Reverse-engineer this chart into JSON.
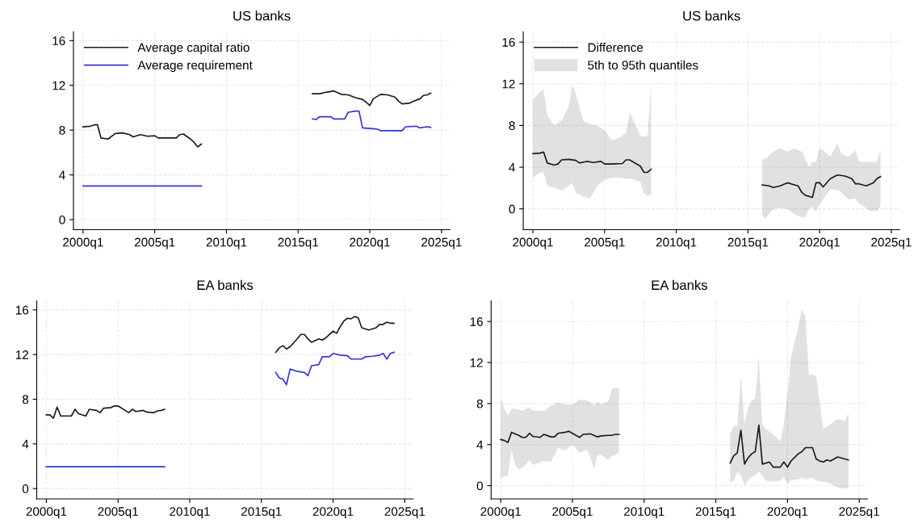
{
  "chart_data": [
    {
      "type": "line",
      "title": "US banks",
      "xlim": [
        "1999-05",
        "2025-08"
      ],
      "ylim": [
        -0.9,
        16.8
      ],
      "xticks": [
        {
          "value": "2000-01",
          "label": "2000q1"
        },
        {
          "value": "2005-01",
          "label": "2005q1"
        },
        {
          "value": "2010-01",
          "label": "2010q1"
        },
        {
          "value": "2015-01",
          "label": "2015q1"
        },
        {
          "value": "2020-01",
          "label": "2020q1"
        },
        {
          "value": "2025-01",
          "label": "2025q1"
        }
      ],
      "yticks": [
        0,
        4,
        8,
        12,
        16
      ],
      "grid": true,
      "legend": "top left",
      "series": [
        {
          "name": "Average capital ratio",
          "color": "#1a1a1a",
          "x": [
            "2000-01",
            "2000-07",
            "2000-10",
            "2001-01",
            "2001-04",
            "2001-10",
            "2002-04",
            "2002-10",
            "2003-04",
            "2003-07",
            "2004-01",
            "2004-07",
            "2005-01",
            "2005-04",
            "2006-01",
            "2006-07",
            "2006-10",
            "2007-01",
            "2007-07",
            "2007-10",
            "2008-01",
            "2008-04",
            "2012-01",
            "2016-01",
            "2016-07",
            "2017-01",
            "2017-07",
            "2018-01",
            "2018-07",
            "2019-01",
            "2019-07",
            "2019-10",
            "2020-01",
            "2020-04",
            "2020-10",
            "2021-04",
            "2021-10",
            "2022-01",
            "2022-04",
            "2022-10",
            "2023-01",
            "2023-07",
            "2023-10",
            "2024-01",
            "2024-04"
          ],
          "values": [
            8.3,
            8.35,
            8.45,
            8.5,
            7.3,
            7.2,
            7.7,
            7.75,
            7.6,
            7.4,
            7.6,
            7.45,
            7.5,
            7.3,
            7.3,
            7.3,
            7.6,
            7.65,
            7.2,
            6.9,
            6.5,
            6.75,
            null,
            11.25,
            11.25,
            11.4,
            11.5,
            11.2,
            11.15,
            10.9,
            10.75,
            10.5,
            10.2,
            10.8,
            11.2,
            11.15,
            10.95,
            10.6,
            10.35,
            10.4,
            10.55,
            10.8,
            11.1,
            11.15,
            11.3
          ]
        },
        {
          "name": "Average requirement",
          "color": "#3434d8",
          "x": [
            "2000-01",
            "2008-04",
            "2012-01",
            "2016-01",
            "2016-04",
            "2016-07",
            "2017-04",
            "2017-07",
            "2018-04",
            "2018-07",
            "2019-01",
            "2019-04",
            "2019-07",
            "2020-01",
            "2020-07",
            "2020-10",
            "2022-04",
            "2022-07",
            "2023-04",
            "2023-07",
            "2024-01",
            "2024-04"
          ],
          "values": [
            3.0,
            3.0,
            null,
            9.0,
            8.95,
            9.2,
            9.2,
            9.0,
            9.0,
            9.6,
            9.7,
            9.7,
            8.2,
            8.15,
            8.1,
            7.95,
            7.95,
            8.3,
            8.35,
            8.2,
            8.3,
            8.25
          ]
        }
      ]
    },
    {
      "type": "line",
      "title": "US banks",
      "xlim": [
        "1999-05",
        "2025-08"
      ],
      "ylim": [
        -2.0,
        17.0
      ],
      "xticks": [
        {
          "value": "2000-01",
          "label": "2000q1"
        },
        {
          "value": "2005-01",
          "label": "2005q1"
        },
        {
          "value": "2010-01",
          "label": "2010q1"
        },
        {
          "value": "2015-01",
          "label": "2015q1"
        },
        {
          "value": "2020-01",
          "label": "2020q1"
        },
        {
          "value": "2025-01",
          "label": "2025q1"
        }
      ],
      "yticks": [
        0,
        4,
        8,
        12,
        16
      ],
      "grid": true,
      "legend": "top left",
      "annotations": [
        "5th to 95th quantiles"
      ],
      "series": [
        {
          "name": "Difference",
          "color": "#1a1a1a",
          "x": [
            "2000-01",
            "2000-07",
            "2000-10",
            "2001-01",
            "2001-07",
            "2001-10",
            "2002-01",
            "2002-07",
            "2002-10",
            "2003-01",
            "2003-04",
            "2003-07",
            "2003-10",
            "2004-01",
            "2004-04",
            "2004-07",
            "2004-10",
            "2005-01",
            "2005-07",
            "2006-01",
            "2006-04",
            "2006-07",
            "2006-10",
            "2007-01",
            "2007-04",
            "2007-07",
            "2007-10",
            "2008-01",
            "2008-04",
            "2012-01",
            "2016-01",
            "2016-04",
            "2016-07",
            "2016-10",
            "2017-04",
            "2017-10",
            "2018-04",
            "2018-07",
            "2018-10",
            "2019-01",
            "2019-04",
            "2019-07",
            "2019-10",
            "2020-01",
            "2020-04",
            "2020-10",
            "2021-04",
            "2021-07",
            "2021-10",
            "2022-01",
            "2022-04",
            "2022-07",
            "2022-10",
            "2023-01",
            "2023-04",
            "2023-07",
            "2023-10",
            "2024-01",
            "2024-04"
          ],
          "values": [
            5.3,
            5.35,
            5.45,
            4.4,
            4.2,
            4.3,
            4.7,
            4.75,
            null,
            4.65,
            4.4,
            null,
            4.55,
            null,
            4.45,
            null,
            4.55,
            4.3,
            4.3,
            null,
            4.35,
            4.7,
            4.7,
            null,
            4.3,
            4.1,
            3.5,
            3.5,
            3.8,
            null,
            2.3,
            null,
            2.2,
            2.05,
            2.2,
            2.5,
            2.3,
            2.2,
            1.6,
            1.3,
            null,
            1.1,
            2.5,
            2.5,
            2.1,
            2.9,
            3.25,
            null,
            3.15,
            null,
            2.9,
            2.4,
            2.4,
            null,
            2.2,
            null,
            2.5,
            2.9,
            3.1
          ],
          "upper": [
            10.5,
            11.2,
            11.5,
            9.0,
            8.0,
            null,
            8.5,
            9.8,
            11.9,
            11.0,
            null,
            8.5,
            null,
            8.1,
            null,
            8.0,
            null,
            7.5,
            6.6,
            6.8,
            null,
            7.3,
            9.3,
            8.5,
            null,
            7.0,
            6.9,
            7.0,
            12.0,
            null,
            4.8,
            4.8,
            null,
            5.5,
            5.8,
            5.5,
            5.8,
            null,
            5.5,
            4.8,
            4.0,
            4.5,
            4.5,
            5.8,
            5.6,
            5.0,
            6.3,
            5.3,
            null,
            5.0,
            null,
            5.6,
            4.5,
            4.5,
            null,
            4.5,
            null,
            4.5,
            5.7
          ],
          "lower": [
            3.0,
            3.5,
            3.5,
            2.2,
            2.0,
            null,
            1.8,
            2.2,
            2.5,
            1.5,
            null,
            1.2,
            null,
            1.0,
            null,
            2.2,
            null,
            2.8,
            3.0,
            3.0,
            null,
            2.9,
            2.9,
            2.8,
            null,
            2.6,
            1.5,
            1.2,
            1.4,
            null,
            -0.7,
            -0.9,
            null,
            0.0,
            0.1,
            0.0,
            -0.5,
            null,
            -0.8,
            -0.8,
            0.0,
            0.2,
            -0.3,
            0.5,
            0.9,
            1.9,
            1.8,
            1.6,
            null,
            0.9,
            null,
            1.0,
            0.5,
            0.3,
            null,
            -0.2,
            null,
            -0.2,
            0.3
          ]
        }
      ]
    },
    {
      "type": "line",
      "title": "EA banks",
      "xlim": [
        "1999-05",
        "2025-08"
      ],
      "ylim": [
        -0.93,
        16.8
      ],
      "xticks": [
        {
          "value": "2000-01",
          "label": "2000q1"
        },
        {
          "value": "2005-01",
          "label": "2005q1"
        },
        {
          "value": "2010-01",
          "label": "2010q1"
        },
        {
          "value": "2015-01",
          "label": "2015q1"
        },
        {
          "value": "2020-01",
          "label": "2020q1"
        },
        {
          "value": "2025-01",
          "label": "2025q1"
        }
      ],
      "yticks": [
        0,
        4,
        8,
        12,
        16
      ],
      "grid": true,
      "series": [
        {
          "color": "#1a1a1a",
          "x": [
            "2000-01",
            "2000-04",
            "2000-07",
            "2000-10",
            "2001-01",
            "2001-10",
            "2002-01",
            "2002-04",
            "2002-10",
            "2003-01",
            "2003-07",
            "2003-10",
            "2004-01",
            "2004-07",
            "2004-10",
            "2005-01",
            "2005-07",
            "2005-10",
            "2006-01",
            "2006-04",
            "2006-10",
            "2007-01",
            "2007-07",
            "2007-10",
            "2008-01",
            "2008-04",
            "2012-01",
            "2016-01",
            "2016-04",
            "2016-07",
            "2016-10",
            "2017-01",
            "2017-07",
            "2017-10",
            "2018-01",
            "2018-04",
            "2018-07",
            "2019-01",
            "2019-04",
            "2019-07",
            "2020-01",
            "2020-04",
            "2020-07",
            "2020-10",
            "2021-01",
            "2021-04",
            "2021-07",
            "2021-10",
            "2022-01",
            "2022-07",
            "2023-01",
            "2023-04",
            "2023-07",
            "2023-10",
            "2024-01",
            "2024-04"
          ],
          "values": [
            6.6,
            6.6,
            6.3,
            7.3,
            6.5,
            6.5,
            7.1,
            6.7,
            6.5,
            7.1,
            7.0,
            6.8,
            7.2,
            7.25,
            7.4,
            7.4,
            7.0,
            6.8,
            7.1,
            6.9,
            7.0,
            6.85,
            6.8,
            6.95,
            7.0,
            7.1,
            null,
            12.2,
            12.6,
            12.8,
            12.5,
            12.7,
            13.4,
            13.8,
            13.8,
            13.4,
            13.1,
            13.4,
            13.3,
            13.5,
            14.1,
            13.9,
            14.5,
            15.0,
            15.25,
            15.2,
            15.4,
            15.3,
            14.4,
            14.2,
            14.4,
            14.7,
            14.7,
            14.9,
            14.8,
            14.8
          ]
        },
        {
          "color": "#3434d8",
          "x": [
            "2000-01",
            "2008-04",
            "2012-01",
            "2016-01",
            "2016-04",
            "2016-07",
            "2016-10",
            "2017-01",
            "2017-07",
            "2018-01",
            "2018-04",
            "2018-07",
            "2019-01",
            "2019-04",
            "2019-10",
            "2020-01",
            "2020-07",
            "2021-01",
            "2021-04",
            "2022-01",
            "2022-04",
            "2022-10",
            "2023-04",
            "2023-07",
            "2023-10",
            "2024-01",
            "2024-04"
          ],
          "values": [
            1.95,
            1.95,
            null,
            10.4,
            9.9,
            9.8,
            9.3,
            10.7,
            10.5,
            10.4,
            10.1,
            11.0,
            11.1,
            11.8,
            11.8,
            12.1,
            11.95,
            11.9,
            11.6,
            11.6,
            11.8,
            11.85,
            11.95,
            12.1,
            11.6,
            12.1,
            12.2
          ]
        }
      ]
    },
    {
      "type": "line",
      "title": "EA banks",
      "xlim": [
        "1999-05",
        "2025-08"
      ],
      "ylim": [
        -1.3,
        18.0
      ],
      "xticks": [
        {
          "value": "2000-01",
          "label": "2000q1"
        },
        {
          "value": "2005-01",
          "label": "2005q1"
        },
        {
          "value": "2010-01",
          "label": "2010q1"
        },
        {
          "value": "2015-01",
          "label": "2015q1"
        },
        {
          "value": "2020-01",
          "label": "2020q1"
        },
        {
          "value": "2025-01",
          "label": "2025q1"
        }
      ],
      "yticks": [
        0,
        4,
        8,
        12,
        16
      ],
      "grid": true,
      "series": [
        {
          "color": "#1a1a1a",
          "x": [
            "2000-01",
            "2000-04",
            "2000-07",
            "2000-10",
            "2001-01",
            "2001-04",
            "2001-07",
            "2001-10",
            "2002-01",
            "2002-04",
            "2002-10",
            "2003-01",
            "2003-07",
            "2003-10",
            "2004-01",
            "2004-07",
            "2004-10",
            "2005-01",
            "2005-07",
            "2005-10",
            "2006-01",
            "2006-04",
            "2006-07",
            "2006-10",
            "2007-01",
            "2007-07",
            "2007-10",
            "2008-01",
            "2008-04",
            "2012-01",
            "2016-01",
            "2016-04",
            "2016-07",
            "2016-10",
            "2017-01",
            "2017-04",
            "2017-07",
            "2017-10",
            "2018-01",
            "2018-04",
            "2018-07",
            "2018-10",
            "2019-01",
            "2019-07",
            "2019-10",
            "2020-01",
            "2020-04",
            "2020-07",
            "2020-10",
            "2021-01",
            "2021-04",
            "2021-07",
            "2021-10",
            "2022-01",
            "2022-04",
            "2022-07",
            "2022-10",
            "2023-01",
            "2023-07",
            "2024-01",
            "2024-04"
          ],
          "values": [
            4.5,
            4.4,
            4.2,
            5.2,
            null,
            4.9,
            4.7,
            4.7,
            5.1,
            4.8,
            4.7,
            5.0,
            4.75,
            4.75,
            5.1,
            5.2,
            5.3,
            5.1,
            4.7,
            5.0,
            null,
            5.05,
            null,
            4.75,
            4.85,
            4.9,
            4.9,
            5.0,
            5.0,
            null,
            2.2,
            2.9,
            3.2,
            5.4,
            2.1,
            2.7,
            3.1,
            3.3,
            5.9,
            2.1,
            null,
            2.3,
            1.8,
            1.8,
            2.3,
            1.8,
            2.4,
            null,
            3.1,
            3.3,
            3.7,
            null,
            3.7,
            2.6,
            2.4,
            2.3,
            2.5,
            2.4,
            2.8,
            2.6,
            2.5
          ],
          "upper": [
            8.5,
            7.5,
            6.8,
            7.5,
            7.5,
            7.4,
            7.3,
            null,
            7.6,
            7.3,
            null,
            7.3,
            7.8,
            null,
            8.1,
            7.9,
            null,
            7.9,
            8.4,
            null,
            8.3,
            8.1,
            7.8,
            8.2,
            7.9,
            8.2,
            9.4,
            9.5,
            9.5,
            null,
            5.0,
            5.8,
            5.8,
            10.7,
            6.0,
            7.5,
            8.3,
            8.5,
            12.5,
            6.0,
            5.5,
            null,
            5.0,
            4.3,
            6.0,
            9.0,
            12.5,
            14.0,
            15.5,
            17.2,
            16.5,
            10.8,
            10.8,
            10.7,
            null,
            5.5,
            null,
            6.0,
            6.5,
            6.3,
            7.1
          ],
          "lower": [
            0.8,
            0.9,
            1.0,
            3.5,
            2.0,
            1.6,
            1.7,
            null,
            2.5,
            2.0,
            null,
            2.4,
            2.3,
            null,
            3.7,
            3.4,
            null,
            4.0,
            3.2,
            null,
            3.5,
            2.8,
            1.6,
            3.0,
            3.0,
            2.5,
            2.9,
            3.0,
            3.3,
            null,
            0.3,
            0.5,
            1.3,
            1.0,
            0.0,
            0.5,
            0.8,
            1.0,
            1.4,
            0.9,
            0.5,
            null,
            0.4,
            0.5,
            0.8,
            0.2,
            0.5,
            0.6,
            0.6,
            0.8,
            0.6,
            0.7,
            0.8,
            0.5,
            null,
            0.4,
            null,
            0.2,
            -0.2,
            -0.3,
            -0.2
          ]
        }
      ]
    }
  ]
}
